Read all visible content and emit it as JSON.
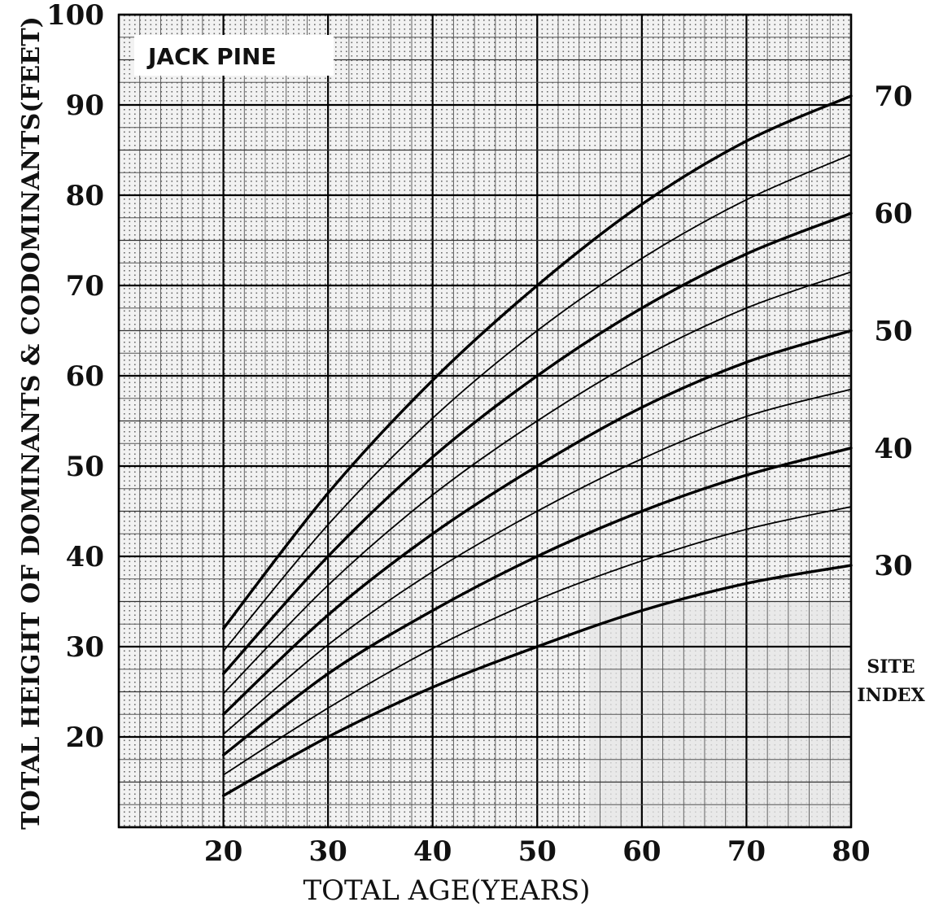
{
  "chart_data": {
    "type": "line",
    "title": "JACK PINE",
    "xlabel": "TOTAL AGE(YEARS)",
    "ylabel": "TOTAL HEIGHT OF DOMINANTS & CODOMINANTS(FEET)",
    "right_axis_label": [
      "SITE",
      "INDEX"
    ],
    "xlim": [
      10,
      80
    ],
    "ylim": [
      10,
      100
    ],
    "x_ticks": [
      "20",
      "30",
      "40",
      "50",
      "60",
      "70",
      "80"
    ],
    "y_ticks": [
      "20",
      "30",
      "40",
      "50",
      "60",
      "70",
      "80",
      "90",
      "100"
    ],
    "right_ticks": [
      {
        "label": "30",
        "y": 39
      },
      {
        "label": "40",
        "y": 52
      },
      {
        "label": "50",
        "y": 65
      },
      {
        "label": "60",
        "y": 78
      },
      {
        "label": "70",
        "y": 91
      }
    ],
    "grid": true,
    "x": [
      20,
      30,
      40,
      50,
      60,
      70,
      80
    ],
    "series": [
      {
        "site_index": 30,
        "bold": true,
        "values": [
          13.5,
          20,
          25.5,
          30,
          34,
          37,
          39
        ]
      },
      {
        "site_index": 35,
        "bold": false,
        "values": [
          15.8,
          23.2,
          29.8,
          35.2,
          39.5,
          43,
          45.5
        ]
      },
      {
        "site_index": 40,
        "bold": true,
        "values": [
          18,
          27,
          34,
          40,
          45,
          49,
          52
        ]
      },
      {
        "site_index": 45,
        "bold": false,
        "values": [
          20.3,
          30.2,
          38.3,
          45,
          50.8,
          55.5,
          58.5
        ]
      },
      {
        "site_index": 50,
        "bold": true,
        "values": [
          22.5,
          33.5,
          42.5,
          50,
          56.5,
          61.5,
          65
        ]
      },
      {
        "site_index": 55,
        "bold": false,
        "values": [
          24.8,
          36.8,
          46.8,
          55,
          62,
          67.5,
          71.5
        ]
      },
      {
        "site_index": 60,
        "bold": true,
        "values": [
          27,
          40,
          51,
          60,
          67.5,
          73.5,
          78
        ]
      },
      {
        "site_index": 65,
        "bold": false,
        "values": [
          29.5,
          43.5,
          55.3,
          65,
          73,
          79.5,
          84.5
        ]
      },
      {
        "site_index": 70,
        "bold": true,
        "values": [
          32,
          47,
          59.5,
          70,
          79,
          86,
          91
        ]
      }
    ]
  }
}
